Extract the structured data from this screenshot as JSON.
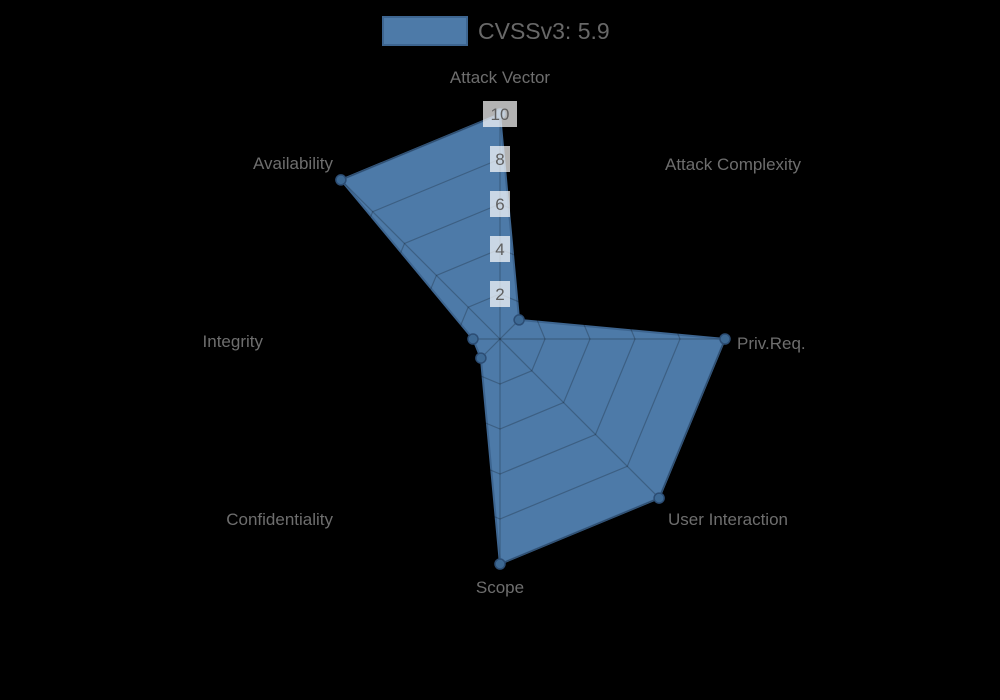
{
  "legend": {
    "label": "CVSSv3: 5.9"
  },
  "chart_data": {
    "type": "radar",
    "title": "",
    "categories": [
      "Attack Vector",
      "Attack Complexity",
      "Priv.Req.",
      "User Interaction",
      "Scope",
      "Confidentiality",
      "Integrity",
      "Availability"
    ],
    "series": [
      {
        "name": "CVSSv3: 5.9",
        "values": [
          10,
          1.2,
          10,
          10,
          10,
          1.2,
          1.2,
          10
        ]
      }
    ],
    "ticks": [
      2,
      4,
      6,
      8,
      10
    ],
    "rlim": [
      0,
      10
    ],
    "grid": true,
    "legend_position": "top",
    "start_axis": "top",
    "direction": "clockwise"
  },
  "style": {
    "background": "#000000",
    "series_fill": "#4d7aa8",
    "series_border": "#3d6590",
    "marker_fill": "#3d6994",
    "marker_border": "#2c4d74",
    "grid_line": "rgba(0,0,0,0.22)",
    "tick_backdrop": "rgba(255,255,255,0.7)",
    "tick_text": "#5f5f5f",
    "label_text": "#6e6e6e",
    "legend_text": "#686868"
  }
}
